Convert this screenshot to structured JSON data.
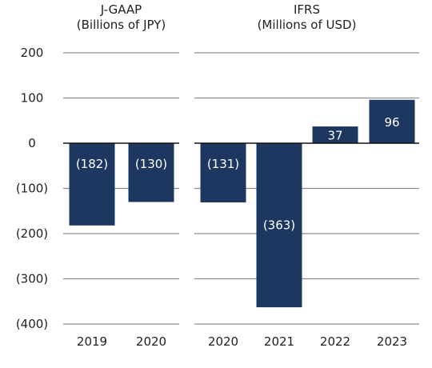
{
  "chart_data": {
    "type": "bar",
    "grid": true,
    "bar_color": "#1d3761",
    "axis_color": "#111111",
    "grid_color": "#8c8c8c",
    "ylim": [
      -400,
      200
    ],
    "yticks": [
      "200",
      "100",
      "0",
      "(100)",
      "(200)",
      "(300)",
      "(400)"
    ],
    "panels": [
      {
        "title": "J-GAAP",
        "subtitle": "(Billions of JPY)",
        "categories": [
          "2019",
          "2020"
        ],
        "values": [
          -182,
          -130
        ],
        "labels": [
          "(182)",
          "(130)"
        ]
      },
      {
        "title": "IFRS",
        "subtitle": "(Millions of USD)",
        "categories": [
          "2020",
          "2021",
          "2022",
          "2023"
        ],
        "values": [
          -131,
          -363,
          37,
          96
        ],
        "labels": [
          "(131)",
          "(363)",
          "37",
          "96"
        ]
      }
    ]
  }
}
